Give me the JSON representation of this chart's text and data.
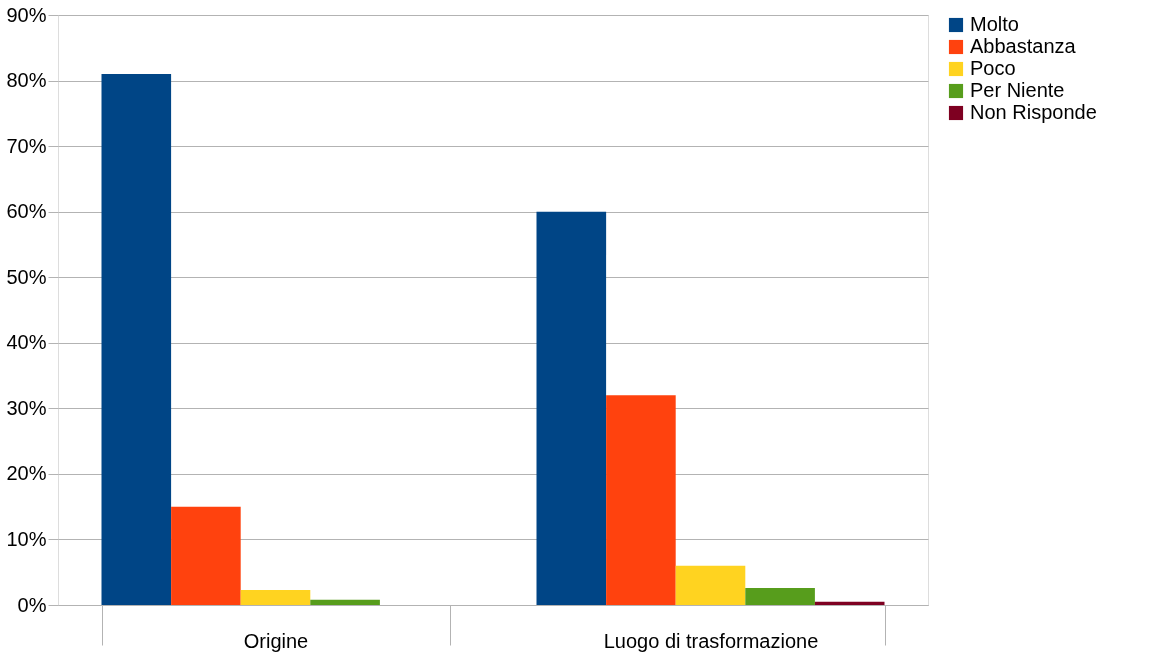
{
  "chart_data": {
    "type": "bar",
    "categories": [
      "Origine",
      "Luogo di trasformazione"
    ],
    "series": [
      {
        "name": "Molto",
        "color": "#004586",
        "values": [
          81,
          60
        ]
      },
      {
        "name": "Abbastanza",
        "color": "#ff420e",
        "values": [
          15,
          32
        ]
      },
      {
        "name": "Poco",
        "color": "#ffd320",
        "values": [
          2.3,
          6
        ]
      },
      {
        "name": "Per Niente",
        "color": "#579d1c",
        "values": [
          0.8,
          2.6
        ]
      },
      {
        "name": "Non Risponde",
        "color": "#7e0021",
        "values": [
          0,
          0.5
        ]
      }
    ],
    "ylim": [
      0,
      90
    ],
    "yticks": [
      {
        "value": 0,
        "label": "0%"
      },
      {
        "value": 10,
        "label": "10%"
      },
      {
        "value": 20,
        "label": "20%"
      },
      {
        "value": 30,
        "label": "30%"
      },
      {
        "value": 40,
        "label": "40%"
      },
      {
        "value": 50,
        "label": "50%"
      },
      {
        "value": 60,
        "label": "60%"
      },
      {
        "value": 70,
        "label": "70%"
      },
      {
        "value": 80,
        "label": "80%"
      },
      {
        "value": 90,
        "label": "90%"
      }
    ],
    "grid": "y",
    "legend": "right"
  }
}
